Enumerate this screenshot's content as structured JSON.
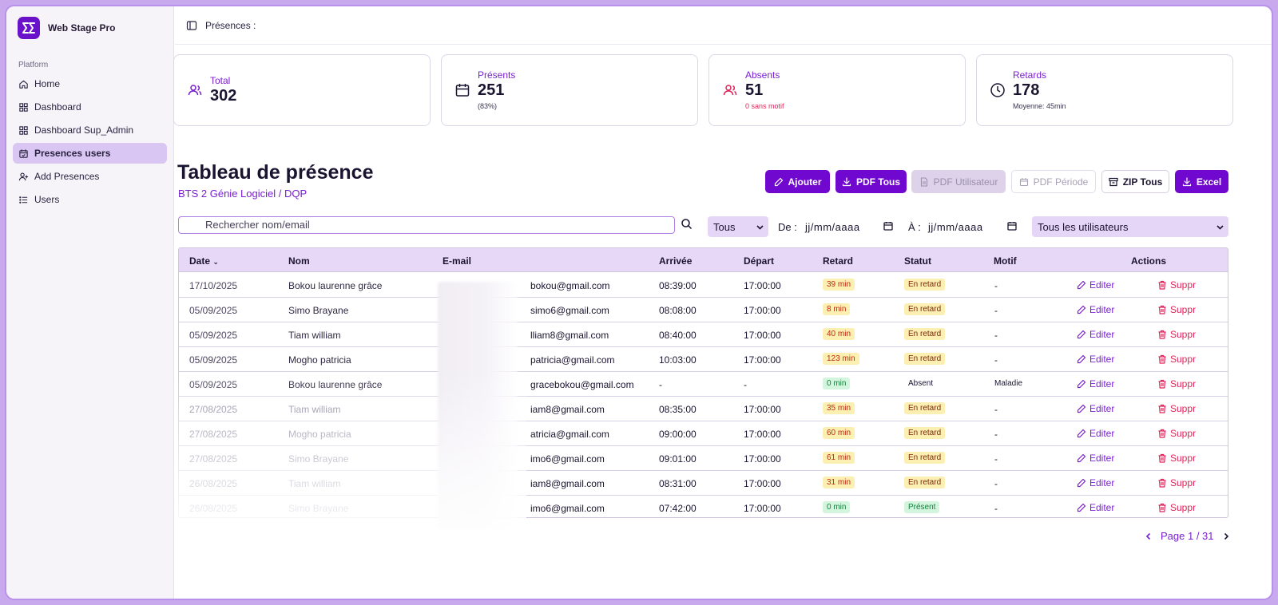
{
  "app": {
    "name": "Web Stage Pro"
  },
  "sidebar": {
    "group_label": "Platform",
    "items": [
      {
        "label": "Home",
        "icon": "home-icon"
      },
      {
        "label": "Dashboard",
        "icon": "grid-icon"
      },
      {
        "label": "Dashboard Sup_Admin",
        "icon": "grid-icon"
      },
      {
        "label": "Presences users",
        "icon": "calendar-check-icon",
        "active": true
      },
      {
        "label": "Add Presences",
        "icon": "user-plus-icon"
      },
      {
        "label": "Users",
        "icon": "list-icon"
      }
    ]
  },
  "topbar": {
    "title": "Présences :"
  },
  "stats": {
    "total": {
      "label": "Total",
      "value": "302"
    },
    "presents": {
      "label": "Présents",
      "value": "251",
      "sub": "(83%)"
    },
    "absents": {
      "label": "Absents",
      "value": "51",
      "sub": "0 sans motif"
    },
    "retards": {
      "label": "Retards",
      "value": "178",
      "sub": "Moyenne: 45min"
    }
  },
  "page": {
    "title": "Tableau de présence",
    "subtitle": "BTS 2 Génie Logiciel / DQP"
  },
  "actions": {
    "add": "Ajouter",
    "pdf_all": "PDF Tous",
    "pdf_user": "PDF Utilisateur",
    "pdf_period": "PDF Période",
    "zip_all": "ZIP Tous",
    "excel": "Excel"
  },
  "filters": {
    "search_placeholder": "Rechercher nom/email",
    "status_value": "Tous",
    "from_label": "De :",
    "from_value": "jj/mm/aaaa",
    "to_label": "À :",
    "to_value": "jj/mm/aaaa",
    "users_value": "Tous les utilisateurs"
  },
  "table": {
    "columns": [
      "Date",
      "Nom",
      "E-mail",
      "Arrivée",
      "Départ",
      "Retard",
      "Statut",
      "Motif",
      "Actions"
    ],
    "edit_label": "Editer",
    "delete_label": "Suppr",
    "rows": [
      {
        "date": "17/10/2025",
        "name": "Bokou laurenne grâce",
        "email": "bokou@gmail.com",
        "arrival": "08:39:00",
        "departure": "17:00:00",
        "delay": "39 min",
        "status": "En retard",
        "reason": "-"
      },
      {
        "date": "05/09/2025",
        "name": "Simo Brayane",
        "email": "simo6@gmail.com",
        "arrival": "08:08:00",
        "departure": "17:00:00",
        "delay": "8 min",
        "status": "En retard",
        "reason": "-"
      },
      {
        "date": "05/09/2025",
        "name": "Tiam william",
        "email": "lliam8@gmail.com",
        "arrival": "08:40:00",
        "departure": "17:00:00",
        "delay": "40 min",
        "status": "En retard",
        "reason": "-"
      },
      {
        "date": "05/09/2025",
        "name": "Mogho patricia",
        "email": "patricia@gmail.com",
        "arrival": "10:03:00",
        "departure": "17:00:00",
        "delay": "123 min",
        "status": "En retard",
        "reason": "-"
      },
      {
        "date": "05/09/2025",
        "name": "Bokou laurenne grâce",
        "email": "gracebokou@gmail.com",
        "arrival": "-",
        "departure": "-",
        "delay": "0 min",
        "status": "Absent",
        "reason": "Maladie"
      },
      {
        "date": "27/08/2025",
        "name": "Tiam william",
        "email": "iam8@gmail.com",
        "arrival": "08:35:00",
        "departure": "17:00:00",
        "delay": "35 min",
        "status": "En retard",
        "reason": "-"
      },
      {
        "date": "27/08/2025",
        "name": "Mogho patricia",
        "email": "atricia@gmail.com",
        "arrival": "09:00:00",
        "departure": "17:00:00",
        "delay": "60 min",
        "status": "En retard",
        "reason": "-"
      },
      {
        "date": "27/08/2025",
        "name": "Simo Brayane",
        "email": "imo6@gmail.com",
        "arrival": "09:01:00",
        "departure": "17:00:00",
        "delay": "61 min",
        "status": "En retard",
        "reason": "-"
      },
      {
        "date": "26/08/2025",
        "name": "Tiam william",
        "email": "iam8@gmail.com",
        "arrival": "08:31:00",
        "departure": "17:00:00",
        "delay": "31 min",
        "status": "En retard",
        "reason": "-"
      },
      {
        "date": "26/08/2025",
        "name": "Simo Brayane",
        "email": "imo6@gmail.com",
        "arrival": "07:42:00",
        "departure": "17:00:00",
        "delay": "0 min",
        "status": "Présent",
        "reason": "-"
      }
    ]
  },
  "pagination": {
    "label": "Page 1 / 31"
  },
  "colors": {
    "accent": "#7008cf",
    "accent_light": "#e5d6f7",
    "danger": "#e0245a",
    "late_bg": "#fbefb2",
    "ok_bg": "#d3f4dd"
  }
}
